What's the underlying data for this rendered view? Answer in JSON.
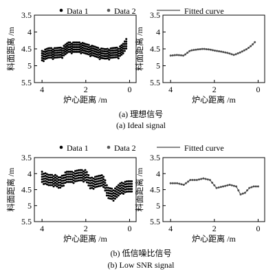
{
  "figure": {
    "panel_a_caption_cn": "(a) 理想信号",
    "panel_a_caption_en": "(a) Ideal signal",
    "panel_b_caption_cn": "(b) 低信噪比信号",
    "panel_b_caption_en": "(b) Low SNR signal"
  },
  "legend": {
    "data1": "Data 1",
    "data2": "Data 2",
    "fitted": "Fitted curve",
    "colors": {
      "data1": "#000000",
      "data2": "#555555",
      "fitted": "#444444"
    }
  },
  "chart_data": [
    {
      "id": "a-left",
      "type": "scatter",
      "xlabel": "炉心距离 /m",
      "ylabel": "料面距离 /m",
      "xlim": [
        4.35,
        -0.3
      ],
      "ylim": [
        5.5,
        3.5
      ],
      "xticks": [
        "4",
        "2",
        "0"
      ],
      "yticks": [
        "3.5",
        "4",
        "4.5",
        "5",
        "5.5"
      ],
      "series": [
        {
          "name": "Data 1",
          "cloud_rows": 5,
          "row_spacing": 0.07,
          "x": [
            4.0,
            3.7,
            3.4,
            3.1,
            2.8,
            2.5,
            2.2,
            2.0,
            1.7,
            1.4,
            1.1,
            0.8,
            0.5,
            0.3,
            0.15
          ],
          "y": [
            4.7,
            4.62,
            4.62,
            4.6,
            4.45,
            4.45,
            4.45,
            4.5,
            4.55,
            4.62,
            4.65,
            4.62,
            4.6,
            4.5,
            4.35
          ]
        }
      ]
    },
    {
      "id": "a-right",
      "type": "scatter",
      "xlabel": "炉心距离 /m",
      "ylabel": "料面距离 /m",
      "xlim": [
        4.35,
        -0.3
      ],
      "ylim": [
        5.5,
        3.5
      ],
      "xticks": [
        "4",
        "2",
        "0"
      ],
      "yticks": [
        "3.5",
        "4",
        "4.5",
        "5",
        "5.5"
      ],
      "series": [
        {
          "name": "Data 2",
          "x": [
            4.0,
            3.7,
            3.4,
            3.1,
            2.8,
            2.5,
            2.2,
            2.0,
            1.7,
            1.4,
            1.1,
            0.8,
            0.5,
            0.3,
            0.15
          ],
          "y": [
            4.7,
            4.68,
            4.7,
            4.55,
            4.52,
            4.5,
            4.52,
            4.55,
            4.58,
            4.62,
            4.68,
            4.6,
            4.5,
            4.4,
            4.3
          ]
        }
      ]
    },
    {
      "id": "b-left",
      "type": "scatter",
      "xlabel": "炉心距离 /m",
      "ylabel": "料面距离 /m",
      "xlim": [
        4.35,
        -0.3
      ],
      "ylim": [
        5.5,
        3.5
      ],
      "xticks": [
        "4",
        "2",
        "0"
      ],
      "yticks": [
        "3.5",
        "4",
        "4.5",
        "5",
        "5.5"
      ],
      "series": [
        {
          "name": "Data 1",
          "cloud_rows": 5,
          "row_spacing": 0.08,
          "x": [
            4.0,
            3.7,
            3.4,
            3.2,
            2.9,
            2.6,
            2.3,
            2.0,
            1.8,
            1.5,
            1.2,
            1.0,
            0.7,
            0.4,
            0.1,
            -0.1
          ],
          "y": [
            4.1,
            4.2,
            4.2,
            4.3,
            4.1,
            4.1,
            4.05,
            4.05,
            4.3,
            4.25,
            4.2,
            4.6,
            4.65,
            4.45,
            4.4,
            4.4
          ]
        }
      ]
    },
    {
      "id": "b-right",
      "type": "scatter",
      "xlabel": "炉心距离 /m",
      "ylabel": "料面距离 /m",
      "xlim": [
        4.35,
        -0.3
      ],
      "ylim": [
        5.5,
        3.5
      ],
      "xticks": [
        "4",
        "2",
        "0"
      ],
      "yticks": [
        "3.5",
        "4",
        "4.5",
        "5",
        "5.5"
      ],
      "series": [
        {
          "name": "Data 2",
          "x": [
            4.0,
            3.7,
            3.4,
            3.1,
            2.8,
            2.5,
            2.2,
            1.9,
            1.6,
            1.3,
            1.0,
            0.8,
            0.6,
            0.4,
            0.2,
            0.0
          ],
          "y": [
            4.3,
            4.3,
            4.35,
            4.2,
            4.2,
            4.15,
            4.2,
            4.45,
            4.4,
            4.35,
            4.4,
            4.65,
            4.6,
            4.45,
            4.4,
            4.4
          ]
        }
      ]
    }
  ]
}
